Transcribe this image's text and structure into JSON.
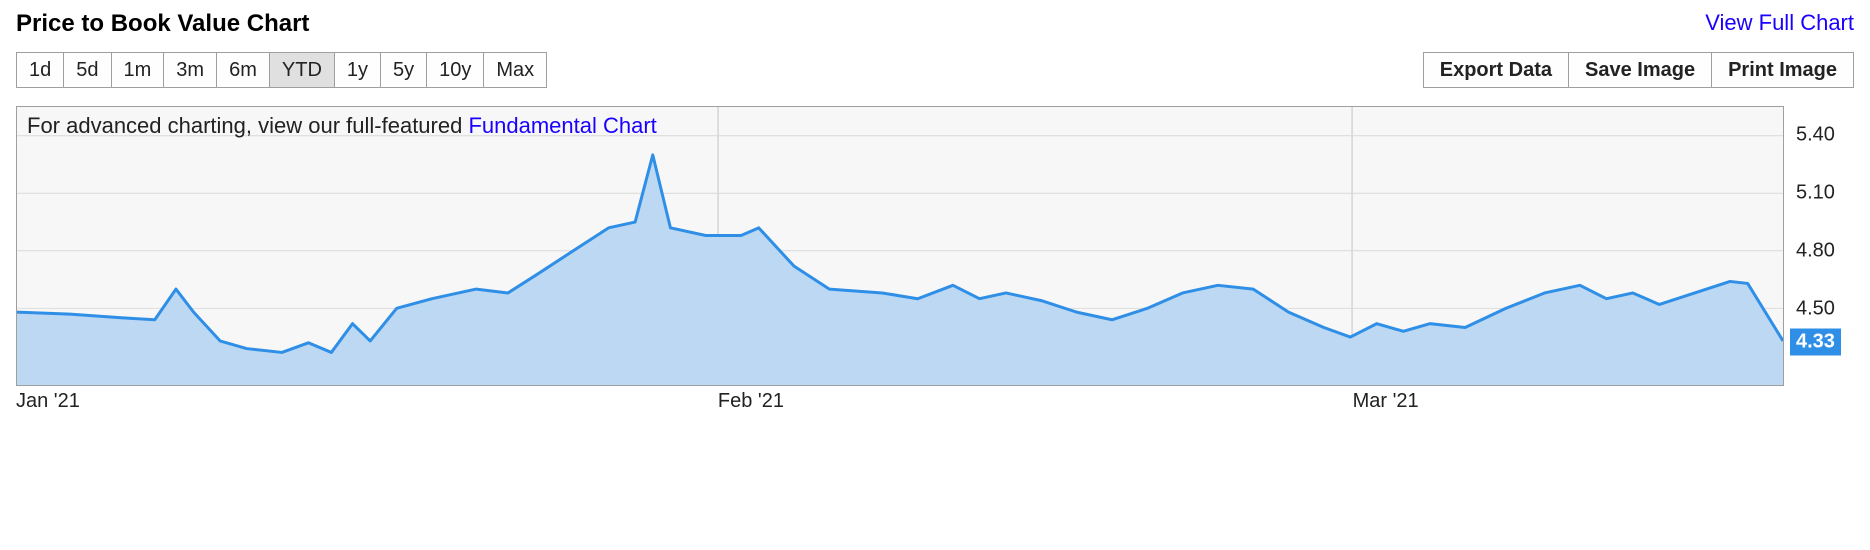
{
  "header": {
    "title": "Price to Book Value Chart",
    "view_full_label": "View Full Chart"
  },
  "ranges": {
    "items": [
      "1d",
      "5d",
      "1m",
      "3m",
      "6m",
      "YTD",
      "1y",
      "5y",
      "10y",
      "Max"
    ],
    "active_index": 5
  },
  "actions": {
    "items": [
      "Export Data",
      "Save Image",
      "Print Image"
    ]
  },
  "hint": {
    "prefix": "For advanced charting, view our full-featured ",
    "link_label": "Fundamental Chart"
  },
  "chart": {
    "type": "area",
    "background_color": "#f7f7f7",
    "border_color": "#9f9f9f",
    "line_color": "#2f8fe6",
    "fill_color": "#bcd8f3",
    "line_width": 3,
    "y_axis": {
      "min": 4.1,
      "max": 5.55,
      "ticks": [
        4.5,
        4.8,
        5.1,
        5.4
      ],
      "tick_fontsize": 20,
      "tick_color": "#222222",
      "gridline_color": "#d9d9d9"
    },
    "x_axis": {
      "ticks": [
        {
          "pos": 0.0,
          "label": "Jan '21"
        },
        {
          "pos": 0.397,
          "label": "Feb '21"
        },
        {
          "pos": 0.756,
          "label": "Mar '21"
        }
      ],
      "gridline_color": "#d9d9d9",
      "tick_fontsize": 20
    },
    "current_value": 4.33,
    "current_value_label": "4.33",
    "current_badge_bg": "#2f8fe6",
    "current_badge_fg": "#ffffff",
    "series": [
      {
        "x": 0.0,
        "y": 4.48
      },
      {
        "x": 0.03,
        "y": 4.47
      },
      {
        "x": 0.06,
        "y": 4.45
      },
      {
        "x": 0.078,
        "y": 4.44
      },
      {
        "x": 0.09,
        "y": 4.6
      },
      {
        "x": 0.1,
        "y": 4.48
      },
      {
        "x": 0.115,
        "y": 4.33
      },
      {
        "x": 0.13,
        "y": 4.29
      },
      {
        "x": 0.15,
        "y": 4.27
      },
      {
        "x": 0.165,
        "y": 4.32
      },
      {
        "x": 0.178,
        "y": 4.27
      },
      {
        "x": 0.19,
        "y": 4.42
      },
      {
        "x": 0.2,
        "y": 4.33
      },
      {
        "x": 0.215,
        "y": 4.5
      },
      {
        "x": 0.235,
        "y": 4.55
      },
      {
        "x": 0.26,
        "y": 4.6
      },
      {
        "x": 0.278,
        "y": 4.58
      },
      {
        "x": 0.295,
        "y": 4.68
      },
      {
        "x": 0.315,
        "y": 4.8
      },
      {
        "x": 0.335,
        "y": 4.92
      },
      {
        "x": 0.35,
        "y": 4.95
      },
      {
        "x": 0.36,
        "y": 5.3
      },
      {
        "x": 0.37,
        "y": 4.92
      },
      {
        "x": 0.39,
        "y": 4.88
      },
      {
        "x": 0.41,
        "y": 4.88
      },
      {
        "x": 0.42,
        "y": 4.92
      },
      {
        "x": 0.44,
        "y": 4.72
      },
      {
        "x": 0.46,
        "y": 4.6
      },
      {
        "x": 0.49,
        "y": 4.58
      },
      {
        "x": 0.51,
        "y": 4.55
      },
      {
        "x": 0.53,
        "y": 4.62
      },
      {
        "x": 0.545,
        "y": 4.55
      },
      {
        "x": 0.56,
        "y": 4.58
      },
      {
        "x": 0.58,
        "y": 4.54
      },
      {
        "x": 0.6,
        "y": 4.48
      },
      {
        "x": 0.62,
        "y": 4.44
      },
      {
        "x": 0.64,
        "y": 4.5
      },
      {
        "x": 0.66,
        "y": 4.58
      },
      {
        "x": 0.68,
        "y": 4.62
      },
      {
        "x": 0.7,
        "y": 4.6
      },
      {
        "x": 0.72,
        "y": 4.48
      },
      {
        "x": 0.74,
        "y": 4.4
      },
      {
        "x": 0.755,
        "y": 4.35
      },
      {
        "x": 0.77,
        "y": 4.42
      },
      {
        "x": 0.785,
        "y": 4.38
      },
      {
        "x": 0.8,
        "y": 4.42
      },
      {
        "x": 0.82,
        "y": 4.4
      },
      {
        "x": 0.843,
        "y": 4.5
      },
      {
        "x": 0.865,
        "y": 4.58
      },
      {
        "x": 0.885,
        "y": 4.62
      },
      {
        "x": 0.9,
        "y": 4.55
      },
      {
        "x": 0.915,
        "y": 4.58
      },
      {
        "x": 0.93,
        "y": 4.52
      },
      {
        "x": 0.95,
        "y": 4.58
      },
      {
        "x": 0.97,
        "y": 4.64
      },
      {
        "x": 0.98,
        "y": 4.63
      },
      {
        "x": 0.99,
        "y": 4.48
      },
      {
        "x": 1.0,
        "y": 4.33
      }
    ]
  }
}
